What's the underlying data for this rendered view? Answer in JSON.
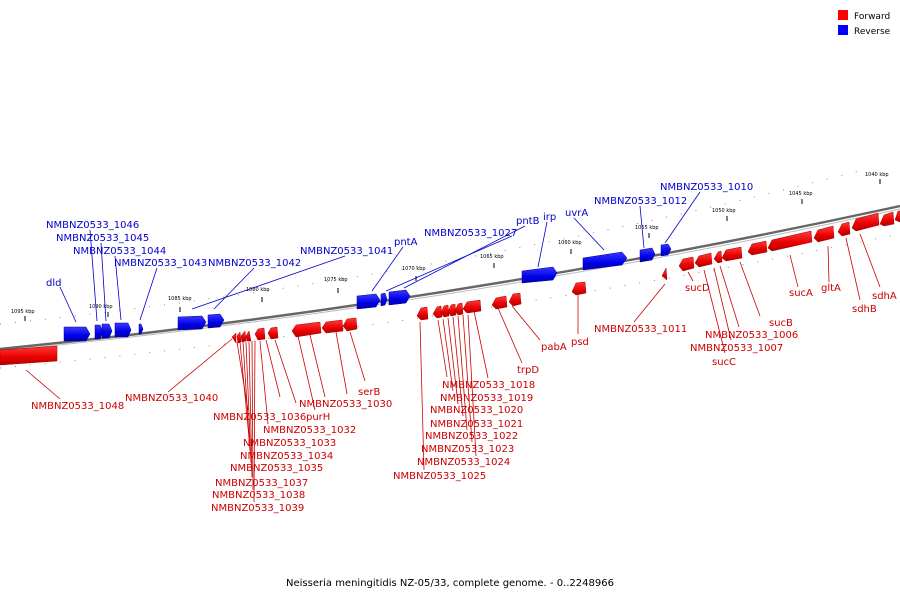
{
  "legend": [
    {
      "label": "Forward",
      "color": "#ff0000"
    },
    {
      "label": "Reverse",
      "color": "#0000ff"
    }
  ],
  "colors": {
    "forward": "#ee0000",
    "reverse": "#0000ee",
    "backbone": "#777777"
  },
  "caption": "Neisseria meningitidis NZ-05/33, complete genome. - 0..2248966",
  "ticks": [
    "1095 kbp",
    "1090 kbp",
    "1085 kbp",
    "1080 kbp",
    "1075 kbp",
    "1070 kbp",
    "1065 kbp",
    "1060 kbp",
    "1055 kbp",
    "1050 kbp",
    "1045 kbp",
    "1040 kbp"
  ],
  "reverse_labels": [
    "dld",
    "NMBNZ0533_1046",
    "NMBNZ0533_1045",
    "NMBNZ0533_1044",
    "NMBNZ0533_1043",
    "NMBNZ0533_1042",
    "NMBNZ0533_1041",
    "pntA",
    "NMBNZ0533_1027",
    "pntB",
    "irp",
    "uvrA",
    "NMBNZ0533_1012",
    "NMBNZ0533_1010"
  ],
  "forward_labels": [
    "NMBNZ0533_1048",
    "NMBNZ0533_1040",
    "NMBNZ0533_1036",
    "purH",
    "NMBNZ0533_1032",
    "NMBNZ0533_1033",
    "NMBNZ0533_1034",
    "NMBNZ0533_1035",
    "NMBNZ0533_1037",
    "NMBNZ0533_1038",
    "NMBNZ0533_1039",
    "serB",
    "NMBNZ0533_1030",
    "NMBNZ0533_1018",
    "NMBNZ0533_1019",
    "NMBNZ0533_1020",
    "NMBNZ0533_1021",
    "NMBNZ0533_1022",
    "NMBNZ0533_1023",
    "NMBNZ0533_1024",
    "NMBNZ0533_1025",
    "trpD",
    "pabA",
    "psd",
    "NMBNZ0533_1011",
    "sucD",
    "NMBNZ0533_1006",
    "NMBNZ0533_1007",
    "sucC",
    "sucB",
    "sucA",
    "gltA",
    "sdhB",
    "sdhA"
  ]
}
